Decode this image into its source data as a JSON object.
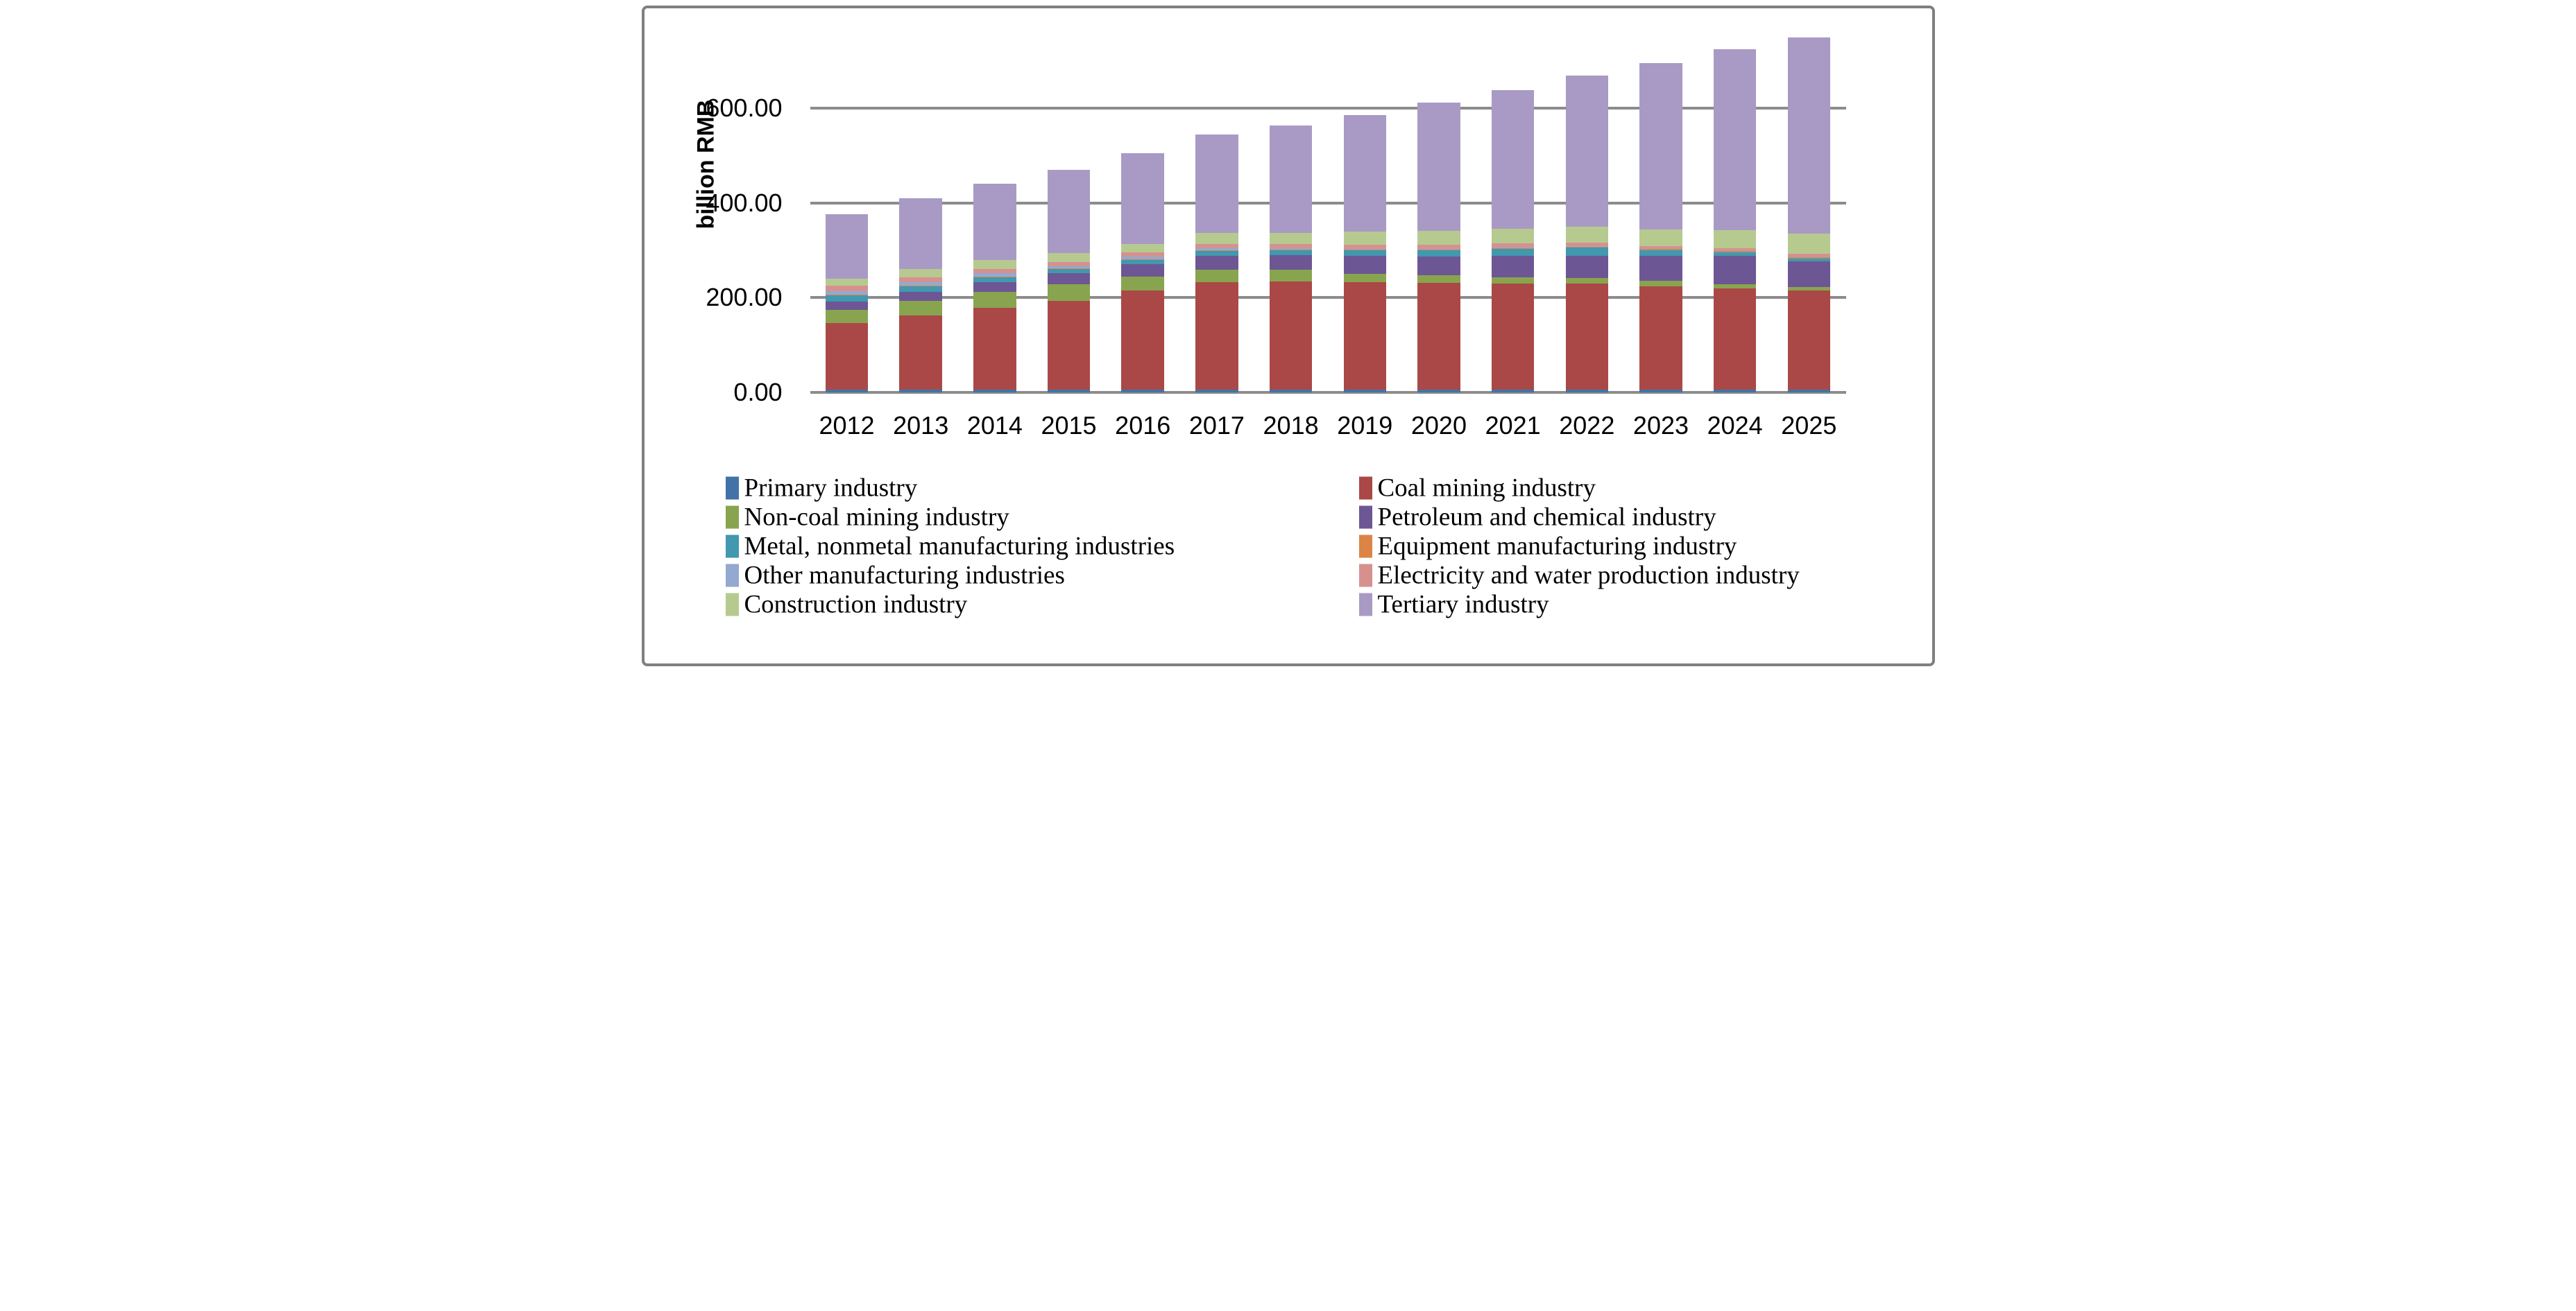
{
  "window": {
    "background": "#ffffff",
    "frame_border_color": "#7f7f7f",
    "gridline_color": "#8c8c8c"
  },
  "chart_data": {
    "type": "bar",
    "stacked": true,
    "title": "",
    "xlabel": "",
    "ylabel": "billion RMB",
    "grid": "horizontal",
    "ylim": [
      0,
      760
    ],
    "legend_position": "bottom-two-columns",
    "categories": [
      "2012",
      "2013",
      "2014",
      "2015",
      "2016",
      "2017",
      "2018",
      "2019",
      "2020",
      "2021",
      "2022",
      "2023",
      "2024",
      "2025"
    ],
    "y_ticks": [
      {
        "label": "600.00",
        "value": 600
      },
      {
        "label": "400.00",
        "value": 400
      },
      {
        "label": "200.00",
        "value": 200
      },
      {
        "label": "0.00",
        "value": 0
      }
    ],
    "series": [
      {
        "name": "Primary industry",
        "color": "#4273A8",
        "values": [
          5.5,
          6,
          6,
          6,
          6,
          6,
          6,
          6.5,
          6.5,
          6.5,
          6.5,
          6.5,
          6.5,
          6.5
        ]
      },
      {
        "name": "Coal mining industry",
        "color": "#AA4847",
        "values": [
          141.5,
          157,
          172,
          187.5,
          208.5,
          227,
          228,
          226,
          225,
          223,
          223,
          217.5,
          213.5,
          208.5
        ]
      },
      {
        "name": "Non-coal mining industry",
        "color": "#89A44F",
        "values": [
          26.5,
          29.5,
          33.5,
          35.5,
          29.5,
          25.5,
          24.5,
          18,
          16,
          14,
          11.5,
          11,
          8.5,
          8
        ]
      },
      {
        "name": "Petroleum and chemical industry",
        "color": "#6D5694",
        "values": [
          17.5,
          20,
          21.5,
          23,
          27,
          30,
          31.5,
          37.5,
          40,
          44.5,
          47,
          53,
          60,
          54
        ]
      },
      {
        "name": "Metal, nonmetal manufacturing industries",
        "color": "#4198AF",
        "values": [
          14,
          11.5,
          10,
          8.5,
          9,
          10,
          10,
          12.5,
          12.5,
          15.5,
          18,
          12,
          7,
          6
        ]
      },
      {
        "name": "Equipment manufacturing industry",
        "color": "#DB8445",
        "values": [
          1,
          1,
          1,
          1,
          1,
          1,
          1,
          1.5,
          2,
          2.5,
          2.5,
          3.5,
          4,
          4
        ]
      },
      {
        "name": "Other manufacturing industries",
        "color": "#93A9D0",
        "values": [
          7.5,
          7.5,
          7,
          4.5,
          5.5,
          4.5,
          3,
          1.5,
          1,
          0.5,
          0.5,
          0.5,
          0.5,
          0.5
        ]
      },
      {
        "name": "Electricity and water production industry",
        "color": "#D6918F",
        "values": [
          11.5,
          10,
          9,
          9,
          9,
          9,
          9,
          8.5,
          8.5,
          7.5,
          6.5,
          4.5,
          5,
          5.5
        ]
      },
      {
        "name": "Construction industry",
        "color": "#B6CA90",
        "values": [
          15.5,
          18,
          19,
          19,
          17.5,
          23,
          24,
          28,
          29.5,
          31.5,
          34.5,
          36,
          38,
          42
        ]
      },
      {
        "name": "Tertiary industry",
        "color": "#A89AC4",
        "values": [
          135.5,
          148.5,
          162,
          176,
          192,
          208,
          227,
          246,
          270,
          292.5,
          319,
          350.5,
          382,
          414
        ]
      }
    ],
    "totals": [
      376,
      409,
      441,
      470,
      505,
      544,
      564,
      586,
      611,
      638,
      669,
      695,
      725,
      749
    ]
  }
}
